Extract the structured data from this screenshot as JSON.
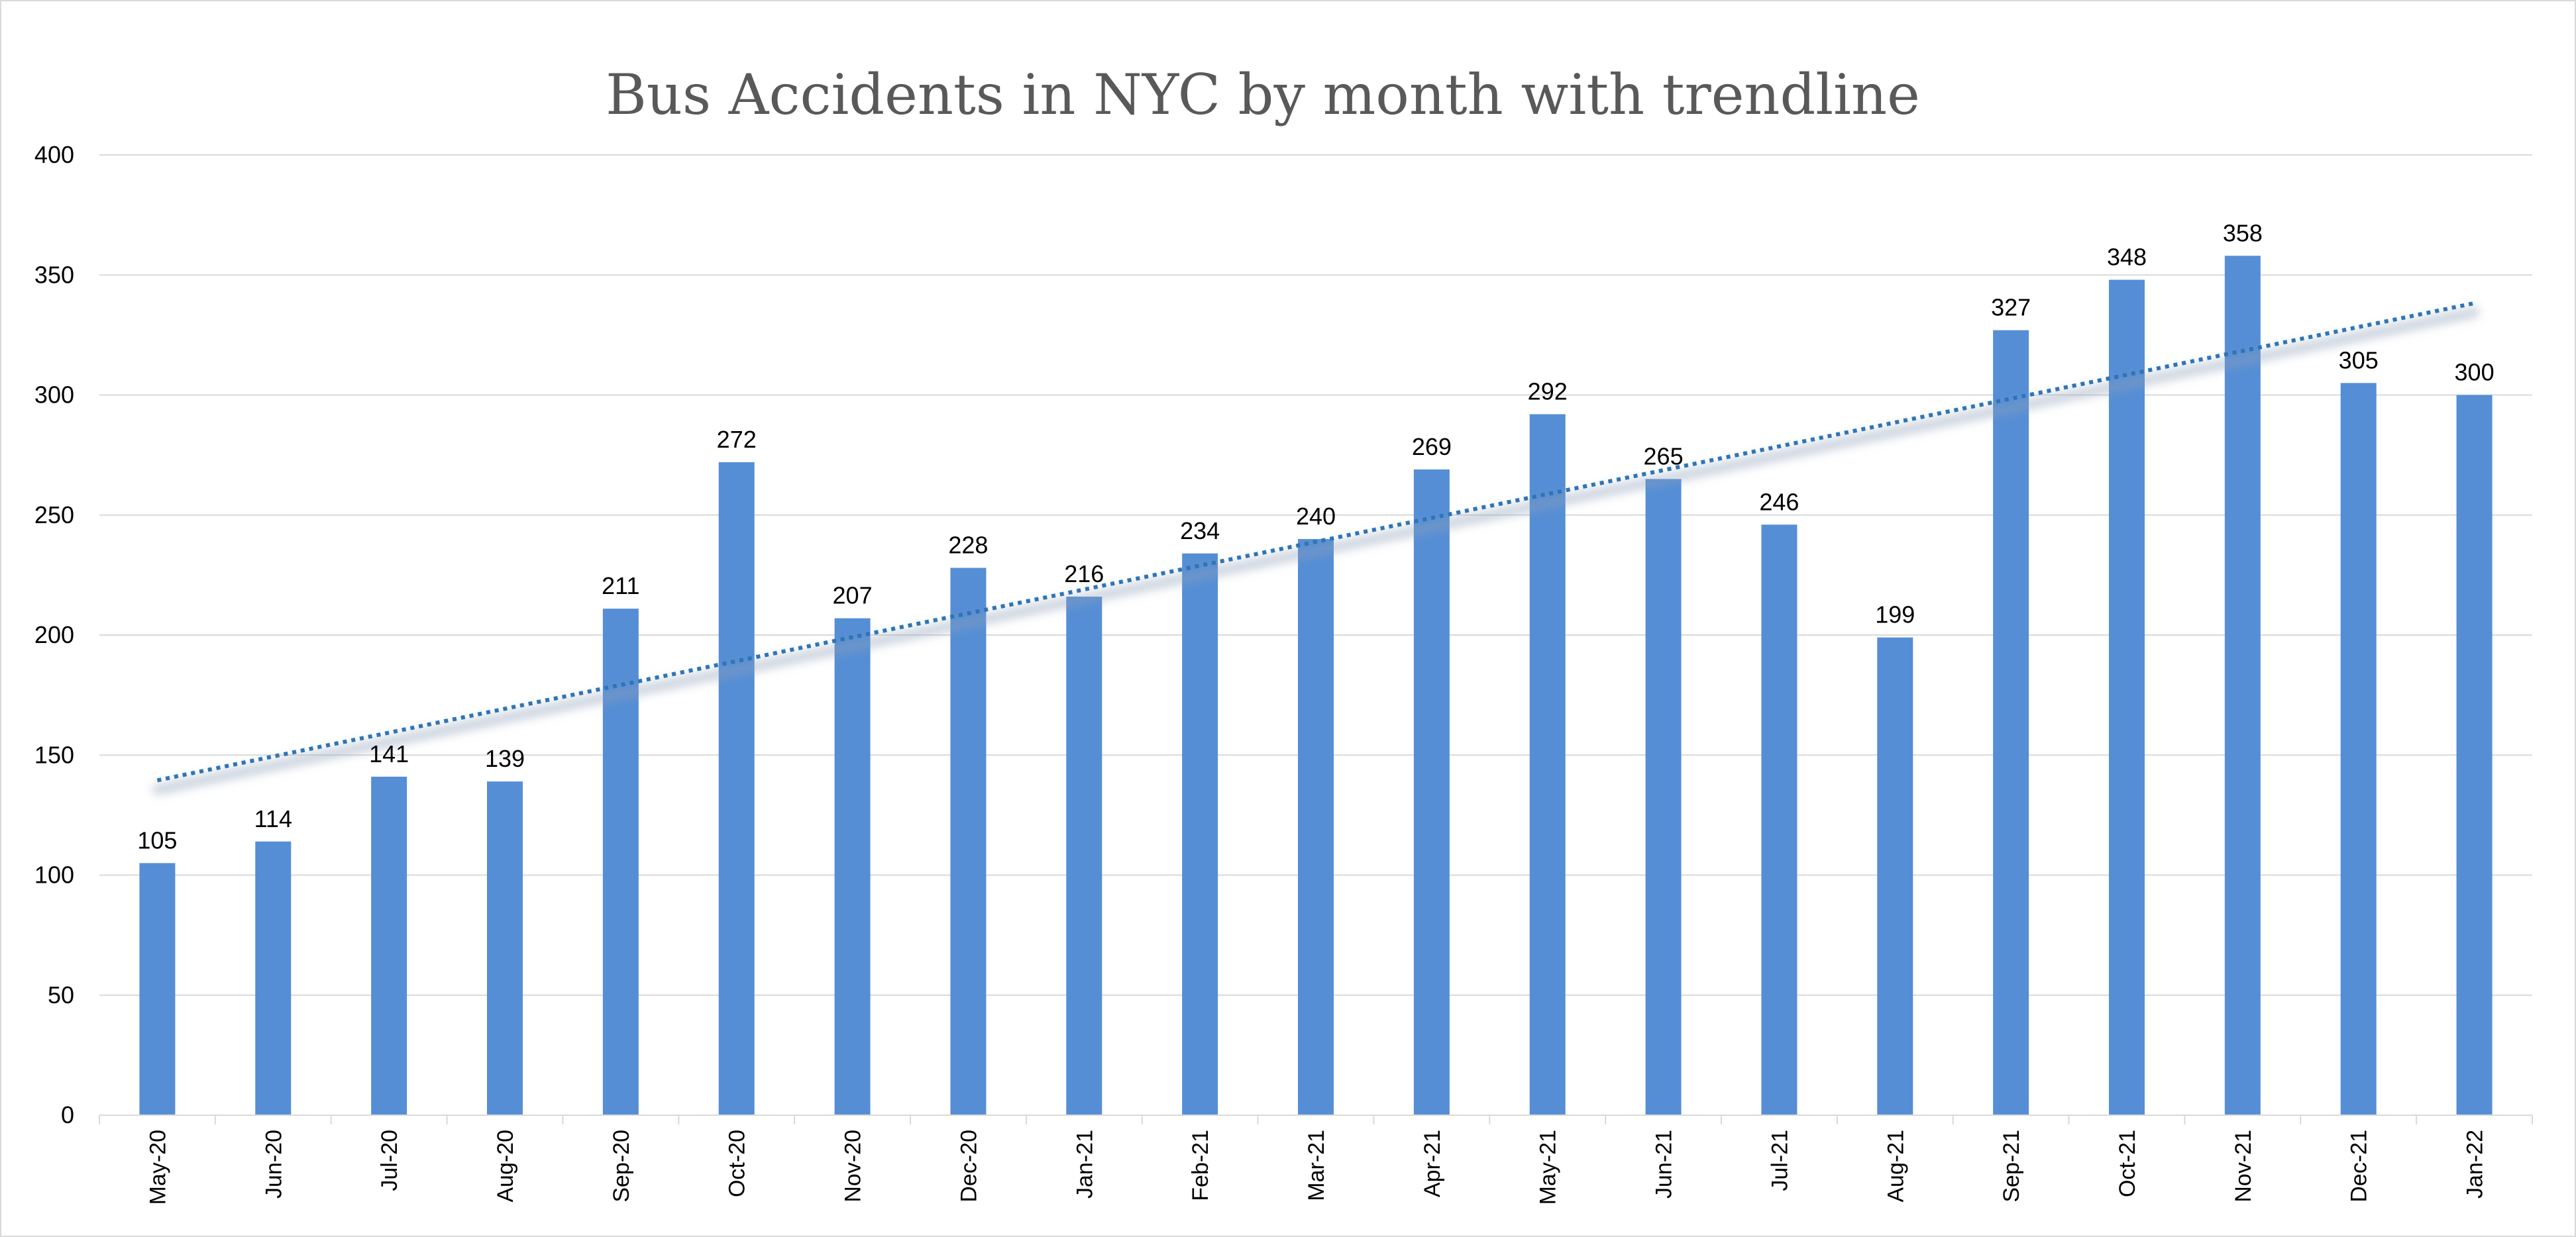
{
  "chart_data": {
    "type": "bar",
    "title": "Bus Accidents in NYC by month with trendline",
    "categories": [
      "May-20",
      "Jun-20",
      "Jul-20",
      "Aug-20",
      "Sep-20",
      "Oct-20",
      "Nov-20",
      "Dec-20",
      "Jan-21",
      "Feb-21",
      "Mar-21",
      "Apr-21",
      "May-21",
      "Jun-21",
      "Jul-21",
      "Aug-21",
      "Sep-21",
      "Oct-21",
      "Nov-21",
      "Dec-21",
      "Jan-22"
    ],
    "values": [
      105,
      114,
      141,
      139,
      211,
      272,
      207,
      228,
      216,
      234,
      240,
      269,
      292,
      265,
      246,
      199,
      327,
      348,
      358,
      305,
      300
    ],
    "ylim": [
      0,
      400
    ],
    "yticks": [
      0,
      50,
      100,
      150,
      200,
      250,
      300,
      350,
      400
    ],
    "grid": true,
    "data_labels": true,
    "trendline": {
      "type": "linear",
      "style": "dotted"
    },
    "colors": {
      "bar": "#558ed5",
      "trendline": "#2e75b6",
      "grid": "#d9d9d9",
      "title": "#595959"
    }
  }
}
